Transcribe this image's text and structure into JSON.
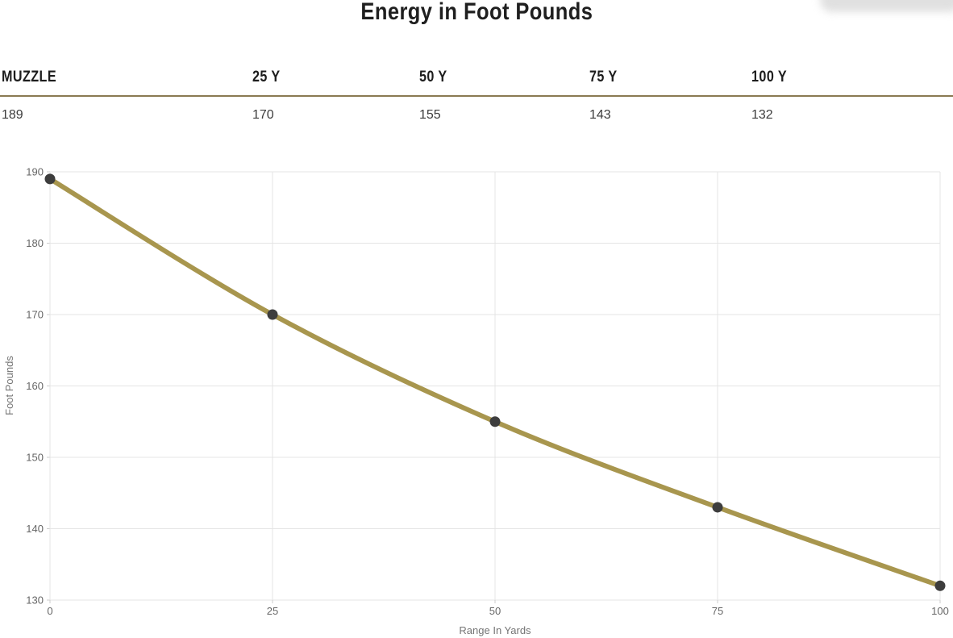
{
  "page": {
    "title": "Energy in Foot Pounds"
  },
  "table": {
    "headers": [
      "MUZZLE",
      "25 Y",
      "50 Y",
      "75 Y",
      "100 Y"
    ],
    "values": [
      "189",
      "170",
      "155",
      "143",
      "132"
    ]
  },
  "chart_data": {
    "type": "line",
    "title": "Energy in Foot Pounds",
    "xlabel": "Range In Yards",
    "ylabel": "Foot Pounds",
    "x": [
      0,
      25,
      50,
      75,
      100
    ],
    "series": [
      {
        "name": "Foot Pounds",
        "values": [
          189,
          170,
          155,
          143,
          132
        ]
      }
    ],
    "xticks": [
      0,
      25,
      50,
      75,
      100
    ],
    "yticks": [
      130,
      140,
      150,
      160,
      170,
      180,
      190
    ],
    "xlim": [
      0,
      100
    ],
    "ylim": [
      130,
      190
    ],
    "grid": true,
    "legend_position": "none",
    "colors": {
      "line": "#a8964e",
      "point": "#3d3d3d",
      "grid": "#e4e4e4",
      "tick_stub": "#cccccc",
      "tick_label": "#666666",
      "axis_title": "#757575",
      "table_rule": "#8a7a52"
    }
  }
}
